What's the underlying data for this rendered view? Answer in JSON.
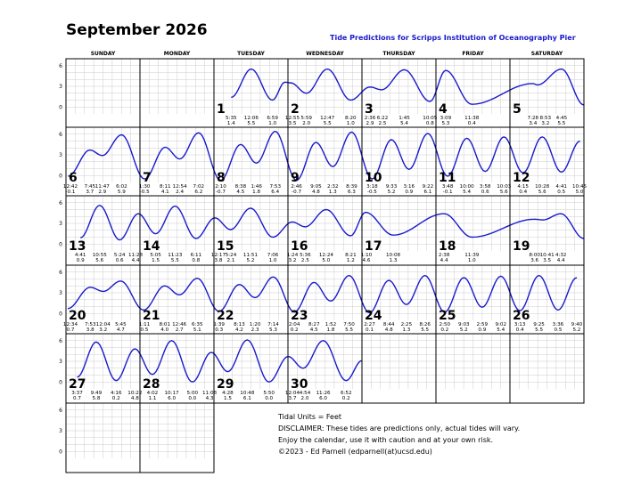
{
  "page": {
    "title": "September 2026",
    "subtitle": "Tide Predictions for Scripps Institution of Oceanography Pier"
  },
  "weekdays": [
    "SUNDAY",
    "MONDAY",
    "TUESDAY",
    "WEDNESDAY",
    "THURSDAY",
    "FRIDAY",
    "SATURDAY"
  ],
  "y_ticks": [
    "6",
    "3",
    "0"
  ],
  "colors": {
    "curve": "#1a1acc",
    "grid": "#cccccc",
    "border": "#000000"
  },
  "chart_data": {
    "type": "line",
    "units": "feet",
    "ylim": [
      -1,
      7
    ],
    "y_ticks": [
      0,
      3,
      6
    ],
    "grid": true,
    "days": [
      {
        "day": "1",
        "week": 0,
        "col": 2,
        "tides": [
          {
            "t": "5:35",
            "h": "1.4"
          },
          {
            "t": "12:06",
            "h": "5.5"
          },
          {
            "t": "6:59",
            "h": "1.0"
          },
          {
            "t": "23:00",
            "h": "3.6",
            "hidden": true
          }
        ]
      },
      {
        "day": "2",
        "week": 0,
        "col": 3,
        "tides": [
          {
            "t": "12:55",
            "h": "3.5"
          },
          {
            "t": "5:59",
            "h": "2.0"
          },
          {
            "t": "12:47",
            "h": "5.5"
          },
          {
            "t": "8:20",
            "h": "1.0"
          }
        ]
      },
      {
        "day": "3",
        "week": 0,
        "col": 4,
        "tides": [
          {
            "t": "2:36",
            "h": "2.9"
          },
          {
            "t": "6:22",
            "h": "2.5"
          },
          {
            "t": "1:45",
            "h": "5.4"
          },
          {
            "t": "10:05",
            "h": "0.8"
          }
        ]
      },
      {
        "day": "4",
        "week": 0,
        "col": 5,
        "tides": [
          {
            "t": "3:09",
            "h": "5.3"
          },
          {
            "t": "11:38",
            "h": "0.4"
          }
        ]
      },
      {
        "day": "5",
        "week": 0,
        "col": 6,
        "tides": [
          {
            "t": "7:28",
            "h": "3.4"
          },
          {
            "t": "8:53",
            "h": "3.2"
          },
          {
            "t": "4:45",
            "h": "5.5"
          },
          {
            "t": "23:59",
            "h": "0.3",
            "hidden": true
          }
        ]
      },
      {
        "day": "6",
        "week": 1,
        "col": 0,
        "tides": [
          {
            "t": "12:42",
            "h": "-0.1"
          },
          {
            "t": "7:45",
            "h": "3.7"
          },
          {
            "t": "11:47",
            "h": "2.9"
          },
          {
            "t": "6:02",
            "h": "5.9"
          }
        ]
      },
      {
        "day": "7",
        "week": 1,
        "col": 1,
        "tides": [
          {
            "t": "1:30",
            "h": "-0.5"
          },
          {
            "t": "8:11",
            "h": "4.1"
          },
          {
            "t": "12:54",
            "h": "2.4"
          },
          {
            "t": "7:02",
            "h": "6.2"
          }
        ]
      },
      {
        "day": "8",
        "week": 1,
        "col": 2,
        "tides": [
          {
            "t": "2:10",
            "h": "-0.7"
          },
          {
            "t": "8:38",
            "h": "4.5"
          },
          {
            "t": "1:46",
            "h": "1.8"
          },
          {
            "t": "7:53",
            "h": "6.4"
          }
        ]
      },
      {
        "day": "9",
        "week": 1,
        "col": 3,
        "tides": [
          {
            "t": "2:46",
            "h": "-0.7"
          },
          {
            "t": "9:05",
            "h": "4.8"
          },
          {
            "t": "2:32",
            "h": "1.3"
          },
          {
            "t": "8:39",
            "h": "6.3"
          }
        ]
      },
      {
        "day": "10",
        "week": 1,
        "col": 4,
        "tides": [
          {
            "t": "3:18",
            "h": "-0.5"
          },
          {
            "t": "9:33",
            "h": "5.2"
          },
          {
            "t": "3:16",
            "h": "0.9"
          },
          {
            "t": "9:22",
            "h": "6.1"
          }
        ]
      },
      {
        "day": "11",
        "week": 1,
        "col": 5,
        "tides": [
          {
            "t": "3:48",
            "h": "-0.1"
          },
          {
            "t": "10:00",
            "h": "5.4"
          },
          {
            "t": "3:58",
            "h": "0.6"
          },
          {
            "t": "10:03",
            "h": "5.6"
          }
        ]
      },
      {
        "day": "12",
        "week": 1,
        "col": 6,
        "tides": [
          {
            "t": "4:15",
            "h": "0.4"
          },
          {
            "t": "10:28",
            "h": "5.6"
          },
          {
            "t": "4:41",
            "h": "0.5"
          },
          {
            "t": "10:45",
            "h": "5.0"
          }
        ]
      },
      {
        "day": "13",
        "week": 2,
        "col": 0,
        "tides": [
          {
            "t": "4:41",
            "h": "0.9"
          },
          {
            "t": "10:55",
            "h": "5.6"
          },
          {
            "t": "5:24",
            "h": "0.6"
          },
          {
            "t": "11:28",
            "h": "4.4"
          }
        ]
      },
      {
        "day": "14",
        "week": 2,
        "col": 1,
        "tides": [
          {
            "t": "5:05",
            "h": "1.5"
          },
          {
            "t": "11:23",
            "h": "5.5"
          },
          {
            "t": "6:11",
            "h": "0.8"
          }
        ]
      },
      {
        "day": "15",
        "week": 2,
        "col": 2,
        "tides": [
          {
            "t": "12:17",
            "h": "3.8"
          },
          {
            "t": "5:24",
            "h": "2.1"
          },
          {
            "t": "11:51",
            "h": "5.2"
          },
          {
            "t": "7:06",
            "h": "1.0"
          }
        ]
      },
      {
        "day": "16",
        "week": 2,
        "col": 3,
        "tides": [
          {
            "t": "1:24",
            "h": "3.2"
          },
          {
            "t": "5:36",
            "h": "2.5"
          },
          {
            "t": "12:24",
            "h": "5.0"
          },
          {
            "t": "8:21",
            "h": "1.2"
          }
        ]
      },
      {
        "day": "17",
        "week": 2,
        "col": 4,
        "tides": [
          {
            "t": "1:10",
            "h": "4.6"
          },
          {
            "t": "10:08",
            "h": "1.3"
          }
        ]
      },
      {
        "day": "18",
        "week": 2,
        "col": 5,
        "tides": [
          {
            "t": "2:38",
            "h": "4.4"
          },
          {
            "t": "11:39",
            "h": "1.0"
          }
        ]
      },
      {
        "day": "19",
        "week": 2,
        "col": 6,
        "tides": [
          {
            "t": "8:00",
            "h": "3.6"
          },
          {
            "t": "10:41",
            "h": "3.5"
          },
          {
            "t": "4:32",
            "h": "4.4"
          },
          {
            "t": "23:59",
            "h": "0.8",
            "hidden": true
          }
        ]
      },
      {
        "day": "20",
        "week": 3,
        "col": 0,
        "tides": [
          {
            "t": "12:34",
            "h": "0.7"
          },
          {
            "t": "7:53",
            "h": "3.8"
          },
          {
            "t": "12:04",
            "h": "3.2"
          },
          {
            "t": "5:45",
            "h": "4.7"
          }
        ]
      },
      {
        "day": "21",
        "week": 3,
        "col": 1,
        "tides": [
          {
            "t": "1:11",
            "h": "0.5"
          },
          {
            "t": "8:01",
            "h": "4.0"
          },
          {
            "t": "12:46",
            "h": "2.7"
          },
          {
            "t": "6:35",
            "h": "5.1"
          }
        ]
      },
      {
        "day": "22",
        "week": 3,
        "col": 2,
        "tides": [
          {
            "t": "1:39",
            "h": "0.3"
          },
          {
            "t": "8:13",
            "h": "4.2"
          },
          {
            "t": "1:20",
            "h": "2.3"
          },
          {
            "t": "7:14",
            "h": "5.3"
          }
        ]
      },
      {
        "day": "23",
        "week": 3,
        "col": 3,
        "tides": [
          {
            "t": "2:04",
            "h": "0.2"
          },
          {
            "t": "8:27",
            "h": "4.5"
          },
          {
            "t": "1:52",
            "h": "1.8"
          },
          {
            "t": "7:50",
            "h": "5.5"
          }
        ]
      },
      {
        "day": "24",
        "week": 3,
        "col": 4,
        "tides": [
          {
            "t": "2:27",
            "h": "0.1"
          },
          {
            "t": "8:44",
            "h": "4.8"
          },
          {
            "t": "2:25",
            "h": "1.3"
          },
          {
            "t": "8:26",
            "h": "5.5"
          }
        ]
      },
      {
        "day": "25",
        "week": 3,
        "col": 5,
        "tides": [
          {
            "t": "2:50",
            "h": "0.2"
          },
          {
            "t": "9:03",
            "h": "5.2"
          },
          {
            "t": "2:59",
            "h": "0.9"
          },
          {
            "t": "9:02",
            "h": "5.4"
          }
        ]
      },
      {
        "day": "26",
        "week": 3,
        "col": 6,
        "tides": [
          {
            "t": "3:13",
            "h": "0.4"
          },
          {
            "t": "9:25",
            "h": "5.5"
          },
          {
            "t": "3:36",
            "h": "0.5"
          },
          {
            "t": "9:40",
            "h": "5.2"
          }
        ]
      },
      {
        "day": "27",
        "week": 4,
        "col": 0,
        "tides": [
          {
            "t": "3:37",
            "h": "0.7"
          },
          {
            "t": "9:49",
            "h": "5.8"
          },
          {
            "t": "4:16",
            "h": "0.2"
          },
          {
            "t": "10:22",
            "h": "4.8"
          }
        ]
      },
      {
        "day": "28",
        "week": 4,
        "col": 1,
        "tides": [
          {
            "t": "4:02",
            "h": "1.1"
          },
          {
            "t": "10:17",
            "h": "6.0"
          },
          {
            "t": "5:00",
            "h": "0.0"
          },
          {
            "t": "11:08",
            "h": "4.3"
          }
        ]
      },
      {
        "day": "29",
        "week": 4,
        "col": 2,
        "tides": [
          {
            "t": "4:28",
            "h": "1.5"
          },
          {
            "t": "10:48",
            "h": "6.1"
          },
          {
            "t": "5:50",
            "h": "0.0"
          }
        ]
      },
      {
        "day": "30",
        "week": 4,
        "col": 3,
        "tides": [
          {
            "t": "12:04",
            "h": "3.7"
          },
          {
            "t": "4:54",
            "h": "2.0"
          },
          {
            "t": "11:26",
            "h": "6.0"
          },
          {
            "t": "6:52",
            "h": "0.2"
          },
          {
            "t": "23:59",
            "h": "3.1",
            "hidden": true
          }
        ]
      }
    ]
  },
  "notes": {
    "units": "Tidal Units = Feet",
    "disclaimer": "DISCLAIMER: These tides are predictions only, actual tides will vary.",
    "enjoy": "Enjoy the calendar, use it with caution and at your own risk.",
    "credit": "©2023 - Ed Parnell (edparnell(at)ucsd.edu)"
  }
}
